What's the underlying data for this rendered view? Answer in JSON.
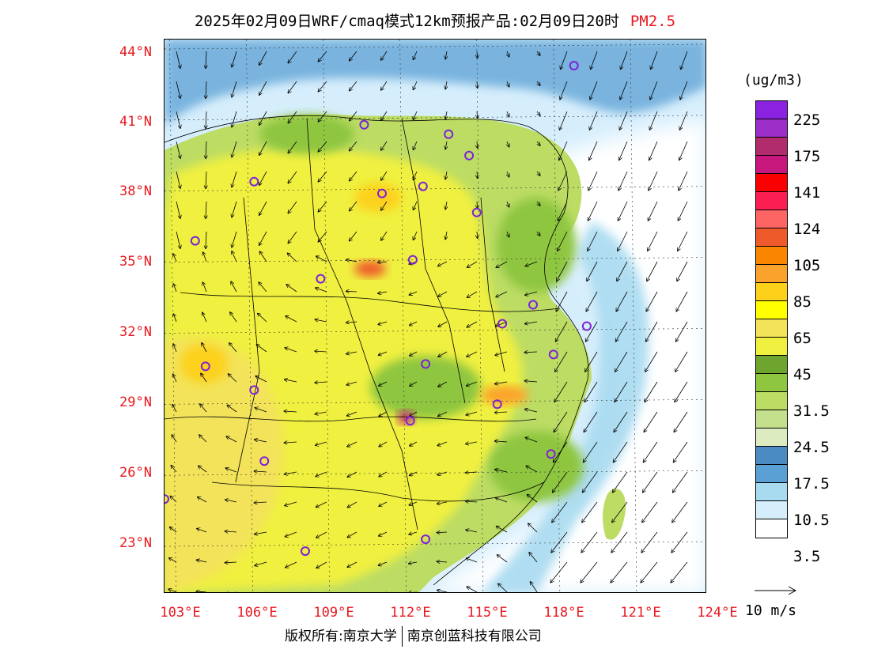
{
  "title": {
    "text": "2025年02月09日WRF/cmaq模式12km预报产品:02月09日20时",
    "pollutant": "PM2.5"
  },
  "colors": {
    "axis_label": "#e8191f",
    "title_accent": "#e8191f",
    "city_marker": "#7d22d6"
  },
  "map": {
    "lon_range": [
      102.8,
      124.0
    ],
    "lat_range": [
      21.0,
      44.4
    ],
    "lat_labels": [
      "44°N",
      "41°N",
      "38°N",
      "35°N",
      "32°N",
      "29°N",
      "26°N",
      "23°N"
    ],
    "lon_labels": [
      "103°E",
      "106°E",
      "109°E",
      "112°E",
      "115°E",
      "118°E",
      "121°E",
      "124°E"
    ],
    "grid": "dotted",
    "layers": [
      "PM2.5 concentration shading",
      "wind vectors",
      "province boundaries",
      "city markers"
    ],
    "cities": [
      {
        "lon": 118.8,
        "lat": 43.3
      },
      {
        "lon": 110.6,
        "lat": 40.8
      },
      {
        "lon": 113.9,
        "lat": 40.4
      },
      {
        "lon": 114.7,
        "lat": 39.5
      },
      {
        "lon": 106.3,
        "lat": 38.4
      },
      {
        "lon": 111.3,
        "lat": 37.9
      },
      {
        "lon": 112.9,
        "lat": 38.2
      },
      {
        "lon": 115.0,
        "lat": 37.1
      },
      {
        "lon": 104.0,
        "lat": 35.9
      },
      {
        "lon": 112.5,
        "lat": 35.1
      },
      {
        "lon": 108.9,
        "lat": 34.3
      },
      {
        "lon": 117.2,
        "lat": 33.2
      },
      {
        "lon": 116.0,
        "lat": 32.4
      },
      {
        "lon": 119.3,
        "lat": 32.3
      },
      {
        "lon": 118.0,
        "lat": 31.1
      },
      {
        "lon": 104.4,
        "lat": 30.6
      },
      {
        "lon": 113.0,
        "lat": 30.7
      },
      {
        "lon": 106.3,
        "lat": 29.6
      },
      {
        "lon": 115.8,
        "lat": 29.0
      },
      {
        "lon": 112.4,
        "lat": 28.3
      },
      {
        "lon": 106.7,
        "lat": 26.6
      },
      {
        "lon": 117.9,
        "lat": 26.9
      },
      {
        "lon": 102.8,
        "lat": 25.0
      },
      {
        "lon": 113.0,
        "lat": 23.3
      },
      {
        "lon": 108.3,
        "lat": 22.8
      }
    ]
  },
  "legend": {
    "unit": "(ug/m3)",
    "colors": [
      "#8b22e0",
      "#9b2fc8",
      "#b02c6c",
      "#c8177c",
      "#fa0000",
      "#fb1e52",
      "#fd6464",
      "#ee5a2a",
      "#fa8500",
      "#fba22c",
      "#fdd11a",
      "#ffff00",
      "#f3e35a",
      "#f0f040",
      "#6ea52e",
      "#8ec63f",
      "#bcdc64",
      "#c4e08c",
      "#dcebc0",
      "#4b8bc4",
      "#5aa0d4",
      "#a8daf0",
      "#d6eefc",
      "#ffffff"
    ],
    "ticks": [
      "225",
      "175",
      "141",
      "124",
      "105",
      "85",
      "65",
      "45",
      "31.5",
      "24.5",
      "17.5",
      "10.5",
      "3.5"
    ]
  },
  "wind_reference": {
    "label": "10 m/s"
  },
  "footer": {
    "left": "版权所有:南京大学",
    "right": "南京创蓝科技有限公司"
  }
}
